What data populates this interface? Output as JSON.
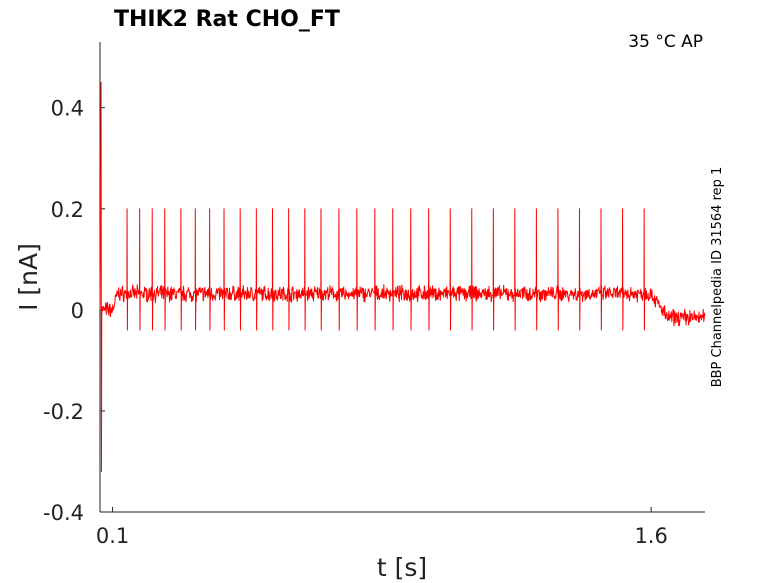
{
  "chart_data": {
    "type": "line",
    "title": "THIK2  Rat  CHO_FT",
    "condition": "35 °C  AP",
    "side_label": "BBP Channelpedia ID 31564 rep 1",
    "xlabel": "t [s]",
    "ylabel": "I [nA]",
    "xlim": [
      0.065,
      1.75
    ],
    "ylim": [
      -0.4,
      0.53
    ],
    "x_ticks": [
      {
        "value": 0.1,
        "label": "0.1"
      },
      {
        "value": 1.6,
        "label": "1.6"
      }
    ],
    "y_ticks": [
      {
        "value": 0.4,
        "label": "0.4"
      },
      {
        "value": 0.2,
        "label": "0.2"
      },
      {
        "value": 0,
        "label": "0"
      },
      {
        "value": -0.2,
        "label": "-0.2"
      },
      {
        "value": -0.4,
        "label": "-0.4"
      }
    ],
    "grid": false,
    "legend": "none",
    "series": [
      {
        "color": "#ff0000",
        "segments": [
          {
            "t0": 0.065,
            "t1": 0.1,
            "baseline": 0.0
          },
          {
            "t0": 0.1,
            "t1": 0.115,
            "baseline_start": 0.0,
            "baseline_end": 0.035
          },
          {
            "t0": 0.115,
            "t1": 1.6,
            "baseline": 0.032
          },
          {
            "t0": 1.6,
            "t1": 1.64,
            "baseline_start": 0.032,
            "baseline_end": -0.01
          },
          {
            "t0": 1.64,
            "t1": 1.75,
            "baseline": -0.015
          }
        ],
        "onset_artifact": {
          "t": 0.068,
          "max": 0.45,
          "min": -0.32
        },
        "spike_times": [
          0.14,
          0.175,
          0.21,
          0.245,
          0.29,
          0.33,
          0.37,
          0.41,
          0.455,
          0.5,
          0.545,
          0.59,
          0.635,
          0.68,
          0.73,
          0.78,
          0.83,
          0.88,
          0.93,
          0.98,
          1.04,
          1.1,
          1.16,
          1.22,
          1.28,
          1.34,
          1.4,
          1.46,
          1.52,
          1.58
        ],
        "spike_peak": 0.2,
        "spike_trough": -0.04,
        "noise_amplitude": 0.012
      }
    ]
  }
}
